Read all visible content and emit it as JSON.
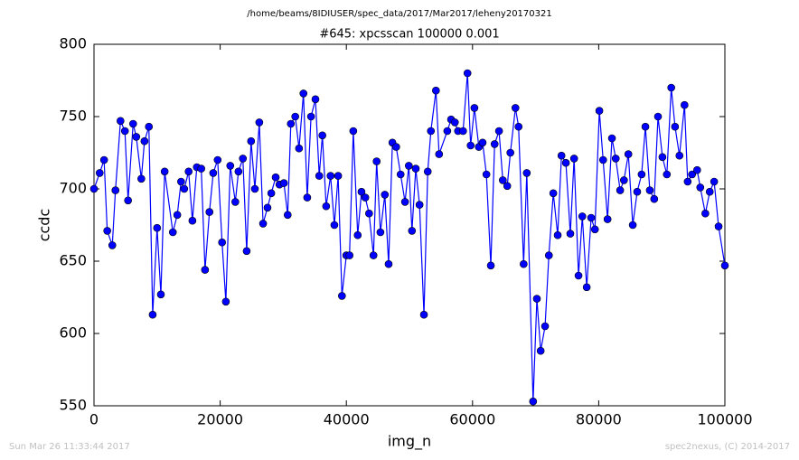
{
  "chart_data": {
    "type": "line",
    "suptitle": "/home/beams/8IDIUSER/spec_data/2017/Mar2017/leheny20170321",
    "title": "#645: xpcsscan 100000 0.001",
    "xlabel": "img_n",
    "ylabel": "ccdc",
    "footer_left": "Sun Mar 26 11:33:44 2017",
    "footer_right": "spec2nexus, (C) 2014-2017",
    "xlim": [
      0,
      100000
    ],
    "ylim": [
      550,
      800
    ],
    "xticks": [
      0,
      20000,
      40000,
      60000,
      80000,
      100000
    ],
    "yticks": [
      550,
      600,
      650,
      700,
      750,
      800
    ],
    "series": [
      {
        "color": "#0000ff",
        "x": [
          0,
          900,
          1600,
          2100,
          2900,
          3400,
          4200,
          4900,
          5400,
          6200,
          6700,
          7500,
          8000,
          8700,
          9300,
          10000,
          10600,
          11200,
          12500,
          13200,
          13800,
          14300,
          15000,
          15600,
          16300,
          17000,
          17600,
          18300,
          18900,
          19600,
          20300,
          20900,
          21600,
          22400,
          22900,
          23600,
          24200,
          24900,
          25500,
          26200,
          26800,
          27500,
          28100,
          28800,
          29400,
          30100,
          30700,
          31200,
          31900,
          32500,
          33200,
          33800,
          34400,
          35100,
          35700,
          36200,
          36800,
          37500,
          38100,
          38700,
          39300,
          40000,
          40500,
          41100,
          41800,
          42400,
          43000,
          43600,
          44300,
          44800,
          45400,
          46100,
          46700,
          47300,
          47900,
          48600,
          49300,
          49900,
          50400,
          51000,
          51600,
          52300,
          52900,
          53400,
          54200,
          54700,
          56000,
          56600,
          57200,
          57700,
          58500,
          59200,
          59700,
          60300,
          61000,
          61600,
          62200,
          62900,
          63500,
          64200,
          64800,
          65500,
          66000,
          66800,
          67300,
          68100,
          68600,
          69600,
          70200,
          70800,
          71500,
          72100,
          72800,
          73500,
          74100,
          74800,
          75500,
          76100,
          76800,
          77400,
          78100,
          78800,
          79400,
          80100,
          80700,
          81400,
          82100,
          82700,
          83400,
          84000,
          84700,
          85400,
          86100,
          86800,
          87400,
          88100,
          88800,
          89400,
          90100,
          90800,
          91500,
          92100,
          92800,
          93600,
          94100,
          94800,
          95600,
          96100,
          96900,
          97600,
          98300,
          99000,
          100000
        ],
        "values": [
          700,
          711,
          720,
          671,
          661,
          699,
          747,
          740,
          692,
          745,
          736,
          707,
          733,
          743,
          613,
          673,
          627,
          712,
          670,
          682,
          705,
          700,
          712,
          678,
          715,
          714,
          644,
          684,
          711,
          720,
          663,
          622,
          716,
          691,
          712,
          721,
          657,
          733,
          700,
          746,
          676,
          687,
          697,
          708,
          703,
          704,
          682,
          745,
          750,
          728,
          766,
          694,
          750,
          762,
          709,
          737,
          688,
          709,
          675,
          709,
          626,
          654,
          654,
          740,
          668,
          698,
          694,
          683,
          654,
          719,
          670,
          696,
          648,
          732,
          729,
          710,
          691,
          716,
          671,
          714,
          689,
          613,
          712,
          740,
          768,
          724,
          740,
          748,
          746,
          740,
          740,
          780,
          730,
          756,
          729,
          732,
          710,
          647,
          731,
          740,
          706,
          702,
          725,
          756,
          743,
          648,
          711,
          553,
          624,
          588,
          605,
          654,
          697,
          668,
          723,
          718,
          669,
          721,
          640,
          681,
          632,
          680,
          672,
          754,
          720,
          679,
          735,
          721,
          699,
          706,
          724,
          675,
          698,
          710,
          743,
          699,
          693,
          750,
          722,
          710,
          770,
          743,
          723,
          758,
          705,
          710,
          713,
          701,
          683,
          698,
          705,
          674,
          647
        ]
      }
    ]
  }
}
